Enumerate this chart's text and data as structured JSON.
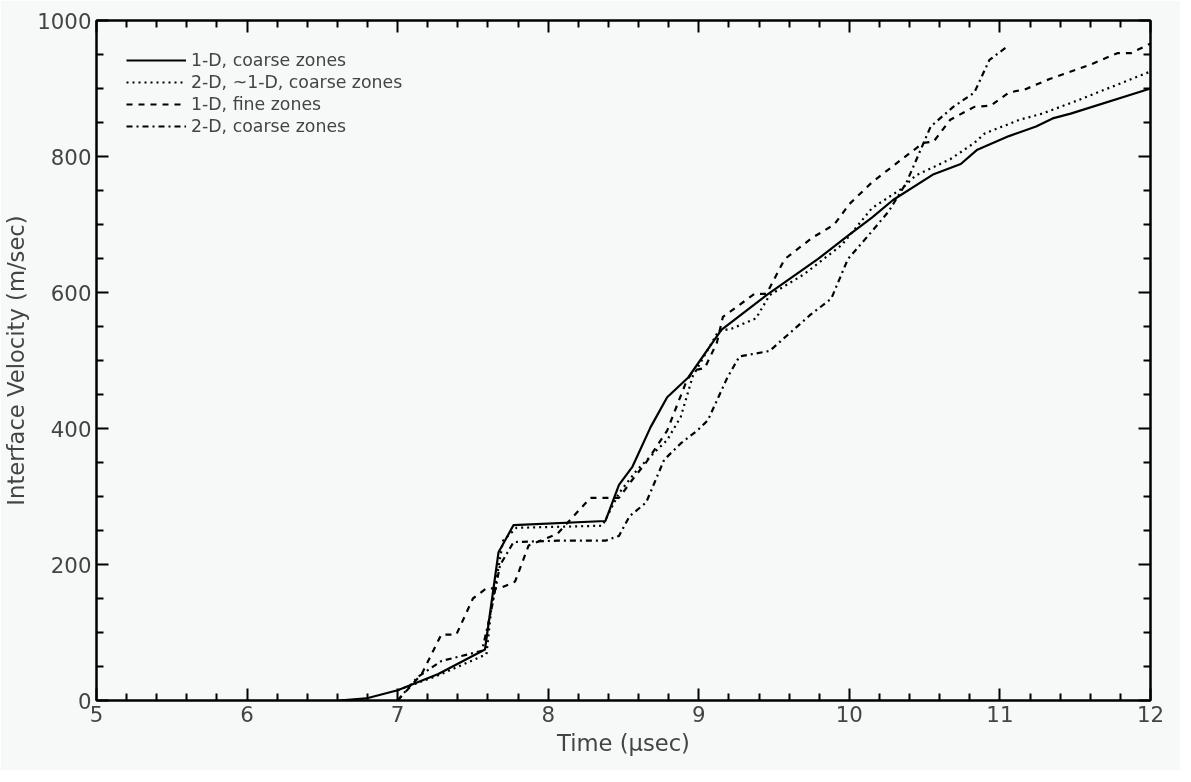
{
  "chart_data": {
    "type": "line",
    "xlabel": "Time (μsec)",
    "ylabel": "Interface Velocity (m/sec)",
    "xlim": [
      5,
      12
    ],
    "ylim": [
      0,
      1000
    ],
    "xticks": [
      5,
      6,
      7,
      8,
      9,
      10,
      11,
      12
    ],
    "yticks": [
      0,
      200,
      400,
      600,
      800,
      1000
    ],
    "grid": false,
    "legend": "top left",
    "marker": "none",
    "series": [
      {
        "name": "1-D, coarse zones",
        "color": "#000000",
        "line_style": "solid",
        "x": [
          6.61,
          6.79,
          7.0,
          7.27,
          7.58,
          7.67,
          7.77,
          8.38,
          8.47,
          8.56,
          8.68,
          8.79,
          8.93,
          9.15,
          9.45,
          9.79,
          10.0,
          10.15,
          10.29,
          10.56,
          10.74,
          10.85,
          11.06,
          11.24,
          11.35,
          11.47,
          12.0
        ],
        "values": [
          0,
          3,
          15,
          39,
          75,
          218,
          258,
          264,
          317,
          344,
          402,
          446,
          475,
          545,
          596,
          649,
          685,
          710,
          736,
          774,
          789,
          810,
          830,
          844,
          856,
          863,
          900
        ]
      },
      {
        "name": "2-D, ~1-D, coarse zones",
        "color": "#000000",
        "line_style": "dotted",
        "x": [
          7.0,
          7.27,
          7.59,
          7.62,
          7.7,
          7.79,
          8.36,
          8.47,
          8.59,
          8.72,
          8.79,
          8.88,
          8.96,
          9.13,
          9.22,
          9.38,
          9.47,
          9.7,
          9.95,
          10.15,
          10.35,
          10.44,
          10.67,
          10.83,
          10.9,
          11.13,
          11.28,
          11.51,
          12.0
        ],
        "values": [
          15,
          37,
          68,
          131,
          235,
          254,
          257,
          305,
          339,
          368,
          383,
          417,
          477,
          543,
          547,
          562,
          596,
          627,
          670,
          724,
          753,
          772,
          796,
          820,
          834,
          854,
          863,
          882,
          925
        ]
      },
      {
        "name": "1-D, fine zones",
        "color": "#000000",
        "line_style": "dashed",
        "x": [
          7.0,
          7.16,
          7.29,
          7.39,
          7.5,
          7.59,
          7.68,
          7.78,
          7.87,
          8.06,
          8.28,
          8.47,
          8.56,
          8.65,
          8.79,
          8.91,
          8.96,
          9.04,
          9.12,
          9.16,
          9.37,
          9.45,
          9.57,
          9.75,
          9.9,
          10.0,
          10.15,
          10.29,
          10.49,
          10.56,
          10.67,
          10.83,
          10.94,
          11.06,
          11.17,
          11.33,
          11.6,
          11.78,
          11.87,
          12.0
        ],
        "values": [
          0,
          39,
          97,
          97,
          150,
          165,
          165,
          175,
          228,
          245,
          298,
          298,
          325,
          350,
          397,
          465,
          485,
          489,
          526,
          564,
          598,
          598,
          649,
          680,
          700,
          730,
          762,
          786,
          820,
          822,
          854,
          873,
          875,
          894,
          899,
          914,
          935,
          952,
          952,
          966
        ]
      },
      {
        "name": "2-D, coarse zones",
        "color": "#000000",
        "line_style": "dashdot",
        "x": [
          7.0,
          7.13,
          7.29,
          7.56,
          7.62,
          7.68,
          7.77,
          8.06,
          8.38,
          8.47,
          8.54,
          8.65,
          8.77,
          8.88,
          8.99,
          9.06,
          9.19,
          9.27,
          9.47,
          9.74,
          9.88,
          9.99,
          10.15,
          10.26,
          10.38,
          10.54,
          10.69,
          10.83,
          10.93,
          11.05
        ],
        "values": [
          0,
          34,
          58,
          73,
          131,
          199,
          233,
          235,
          235,
          242,
          271,
          291,
          354,
          378,
          397,
          412,
          475,
          506,
          514,
          567,
          591,
          649,
          690,
          719,
          762,
          844,
          873,
          894,
          942,
          962
        ]
      }
    ]
  }
}
